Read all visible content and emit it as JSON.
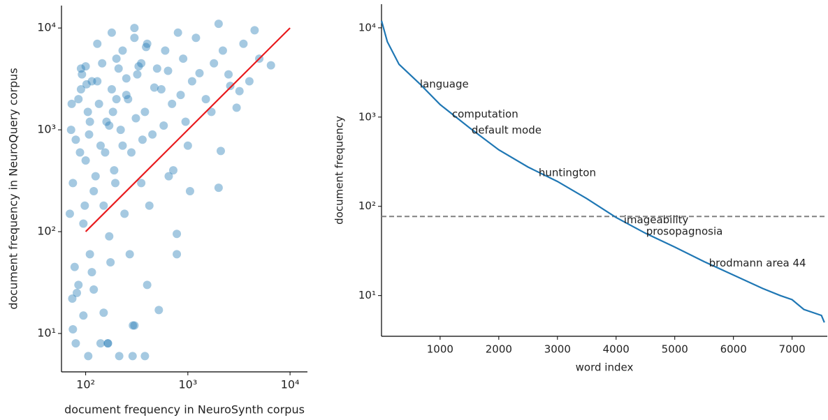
{
  "chart_data": [
    {
      "type": "scatter",
      "xlabel": "document frequency in NeuroSynth corpus",
      "ylabel": "document frequency in NeuroQuery corpus",
      "xscale": "log",
      "yscale": "log",
      "xlim": [
        58,
        14800
      ],
      "ylim": [
        4.2,
        16600
      ],
      "xticks": [
        {
          "value": 100,
          "label": "10²"
        },
        {
          "value": 1000,
          "label": "10³"
        },
        {
          "value": 10000,
          "label": "10⁴"
        }
      ],
      "yticks": [
        {
          "value": 10,
          "label": "10¹"
        },
        {
          "value": 100,
          "label": "10²"
        },
        {
          "value": 1000,
          "label": "10³"
        },
        {
          "value": 10000,
          "label": "10⁴"
        }
      ],
      "color": "#1f77b4",
      "alpha": 0.4,
      "x": [
        70,
        75,
        80,
        85,
        90,
        95,
        100,
        105,
        110,
        120,
        130,
        140,
        150,
        160,
        170,
        180,
        190,
        200,
        220,
        240,
        260,
        280,
        300,
        320,
        350,
        380,
        400,
        450,
        500,
        550,
        600,
        650,
        700,
        800,
        900,
        1000,
        1100,
        1200,
        1500,
        1800,
        2000,
        2200,
        2500,
        3000,
        3500,
        4000,
        4500,
        5000,
        6500,
        72,
        78,
        82,
        88,
        92,
        98,
        102,
        108,
        115,
        125,
        135,
        145,
        155,
        165,
        175,
        185,
        195,
        210,
        230,
        250,
        270,
        290,
        310,
        330,
        360,
        390,
        420,
        470,
        520,
        580,
        640,
        720,
        780,
        850,
        950,
        1050,
        1300,
        1700,
        2100,
        2600,
        3200,
        106,
        213,
        288,
        380,
        80,
        165,
        140,
        300,
        74,
        75,
        400,
        780,
        2000,
        150,
        120,
        95,
        85,
        110,
        73,
        90,
        100,
        115,
        130,
        180,
        230,
        300,
        200,
        170,
        250,
        350
      ],
      "values": [
        150,
        300,
        800,
        2000,
        4000,
        120,
        500,
        1500,
        60,
        250,
        3000,
        700,
        180,
        1200,
        90,
        2500,
        400,
        5000,
        1000,
        150,
        2000,
        600,
        8000,
        3500,
        300,
        1500,
        7000,
        900,
        4000,
        2500,
        6000,
        350,
        1800,
        9000,
        5000,
        700,
        3000,
        8000,
        2000,
        4500,
        11000,
        6000,
        3500,
        1650,
        7000,
        3000,
        9500,
        5000,
        4300,
        1000,
        45,
        25,
        600,
        3500,
        180,
        2800,
        900,
        40,
        350,
        1800,
        4500,
        600,
        8,
        50,
        1500,
        300,
        4000,
        700,
        2200,
        60,
        12,
        1300,
        4200,
        800,
        6500,
        180,
        2600,
        17,
        1100,
        3800,
        400,
        95,
        2200,
        1200,
        250,
        3600,
        1500,
        620,
        2700,
        2400,
        6,
        6,
        6,
        6,
        8,
        8,
        8,
        12,
        22,
        11,
        30,
        60,
        270,
        16,
        27,
        15,
        30,
        1200,
        1800,
        2500,
        4200,
        3000,
        7000,
        9000,
        6000,
        10000,
        2000,
        1100,
        3200,
        4500
      ],
      "fit_line": {
        "x": [
          100,
          10000
        ],
        "values": [
          100,
          10000
        ],
        "color": "#e8191c"
      }
    },
    {
      "type": "line",
      "xlabel": "word index",
      "ylabel": "document frequency",
      "yscale": "log",
      "xlim": [
        1,
        7600
      ],
      "ylim": [
        3.5,
        18400
      ],
      "xticks": [
        1000,
        2000,
        3000,
        4000,
        5000,
        6000,
        7000
      ],
      "yticks": [
        {
          "value": 10,
          "label": "10¹"
        },
        {
          "value": 100,
          "label": "10²"
        },
        {
          "value": 1000,
          "label": "10³"
        },
        {
          "value": 10000,
          "label": "10⁴"
        }
      ],
      "color": "#1f77b4",
      "x": [
        1,
        100,
        300,
        650,
        1000,
        1500,
        2000,
        2500,
        3000,
        3500,
        4000,
        4500,
        5000,
        5500,
        6000,
        6500,
        6800,
        7000,
        7200,
        7500,
        7550
      ],
      "values": [
        12000,
        7000,
        3900,
        2370,
        1380,
        760,
        430,
        275,
        190,
        122,
        75,
        50,
        35,
        24,
        17,
        12,
        10,
        9,
        7,
        6,
        5
      ],
      "hline": {
        "value": 77,
        "color": "#808080"
      },
      "annotations": [
        {
          "text": "language",
          "x": 655,
          "y": 2330
        },
        {
          "text": "computation",
          "x": 1202,
          "y": 1075
        },
        {
          "text": "default mode",
          "x": 1536,
          "y": 710
        },
        {
          "text": "huntington",
          "x": 2679,
          "y": 237
        },
        {
          "text": "imageability",
          "x": 4131,
          "y": 70
        },
        {
          "text": "prosopagnosia",
          "x": 4512,
          "y": 52
        },
        {
          "text": "brodmann area 44",
          "x": 5583,
          "y": 23
        }
      ]
    }
  ]
}
